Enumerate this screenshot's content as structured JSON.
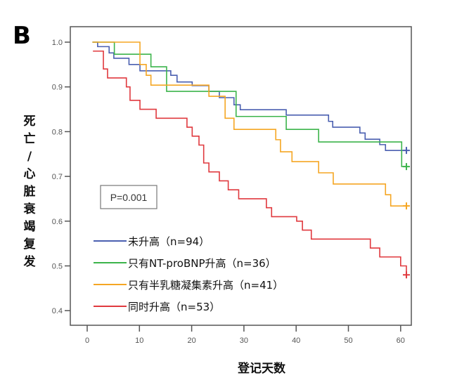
{
  "panel_label": "B",
  "chart_data": {
    "type": "line",
    "subtype": "kaplan-meier step",
    "xlabel": "登记天数",
    "ylabel": "死亡/心脏衰竭复发",
    "xlim": [
      -2,
      63
    ],
    "ylim": [
      0.37,
      1.035
    ],
    "xticks": [
      0,
      10,
      20,
      30,
      40,
      50,
      60
    ],
    "yticks": [
      "0.4",
      "0.5",
      "0.6",
      "0.7",
      "0.8",
      "0.9",
      "1.0"
    ],
    "grid": false,
    "legend_placement": "bottom-left",
    "annotation": "P=0.001",
    "series": [
      {
        "name": "未升高（n=94）",
        "color": "#4a5fb0",
        "censor_x": 61.1,
        "points": [
          [
            1,
            1.0
          ],
          [
            2,
            0.99
          ],
          [
            4.2,
            0.976
          ],
          [
            5.1,
            0.964
          ],
          [
            8,
            0.95
          ],
          [
            10.1,
            0.936
          ],
          [
            16,
            0.926
          ],
          [
            17.2,
            0.911
          ],
          [
            20.1,
            0.903
          ],
          [
            23.3,
            0.89
          ],
          [
            25.3,
            0.876
          ],
          [
            28.1,
            0.86
          ],
          [
            29.3,
            0.849
          ],
          [
            38.1,
            0.837
          ],
          [
            46.2,
            0.823
          ],
          [
            47,
            0.81
          ],
          [
            52.2,
            0.797
          ],
          [
            53.2,
            0.783
          ],
          [
            56,
            0.771
          ],
          [
            57.1,
            0.758
          ]
        ]
      },
      {
        "name": "只有NT-proBNP升高（n=36）",
        "color": "#3cb44b",
        "censor_x": 61.1,
        "points": [
          [
            1,
            1.0
          ],
          [
            5.2,
            0.973
          ],
          [
            12.2,
            0.945
          ],
          [
            15.2,
            0.89
          ],
          [
            28.5,
            0.834
          ],
          [
            38.1,
            0.805
          ],
          [
            44.3,
            0.777
          ],
          [
            60.2,
            0.722
          ]
        ]
      },
      {
        "name": "只有半乳糖凝集素升高（n=41）",
        "color": "#f5a623",
        "censor_x": 61.1,
        "points": [
          [
            1,
            1.0
          ],
          [
            10.1,
            0.95
          ],
          [
            11.3,
            0.926
          ],
          [
            12.2,
            0.904
          ],
          [
            23.3,
            0.879
          ],
          [
            26.4,
            0.83
          ],
          [
            28.1,
            0.805
          ],
          [
            36.1,
            0.782
          ],
          [
            37,
            0.755
          ],
          [
            39.2,
            0.733
          ],
          [
            44.3,
            0.708
          ],
          [
            47.1,
            0.683
          ],
          [
            57.1,
            0.659
          ],
          [
            58.1,
            0.634
          ]
        ]
      },
      {
        "name": "同时升高（n=53）",
        "color": "#e0393e",
        "censor_x": 61.1,
        "points": [
          [
            1.1,
            0.98
          ],
          [
            3.1,
            0.94
          ],
          [
            3.9,
            0.92
          ],
          [
            7.5,
            0.9
          ],
          [
            8.2,
            0.87
          ],
          [
            10.1,
            0.85
          ],
          [
            13.2,
            0.83
          ],
          [
            19.1,
            0.81
          ],
          [
            20.1,
            0.79
          ],
          [
            21.4,
            0.77
          ],
          [
            22.3,
            0.73
          ],
          [
            23.3,
            0.71
          ],
          [
            25.3,
            0.69
          ],
          [
            27,
            0.67
          ],
          [
            29,
            0.65
          ],
          [
            34.3,
            0.63
          ],
          [
            35.3,
            0.61
          ],
          [
            40.1,
            0.6
          ],
          [
            41.2,
            0.58
          ],
          [
            42.9,
            0.56
          ],
          [
            54.2,
            0.54
          ],
          [
            56,
            0.52
          ],
          [
            60,
            0.5
          ],
          [
            61.1,
            0.48
          ]
        ]
      }
    ]
  }
}
